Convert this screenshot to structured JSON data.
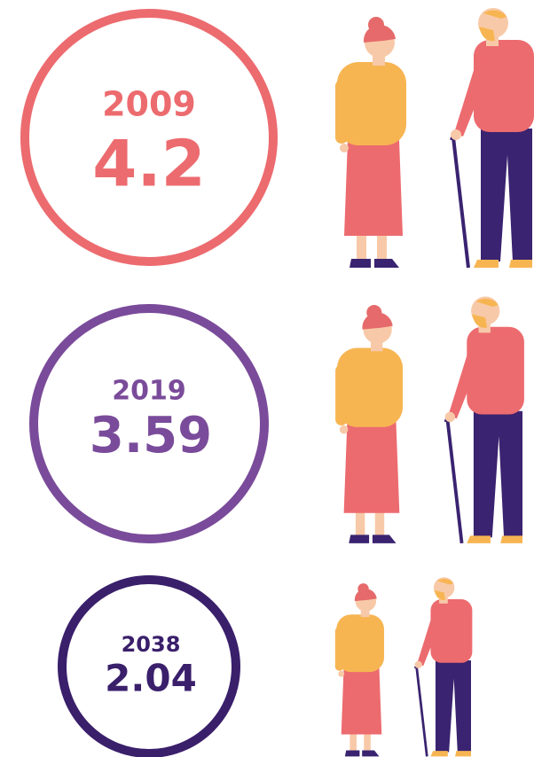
{
  "items": [
    {
      "year": "2009",
      "value": "4.2"
    },
    {
      "year": "2019",
      "value": "3.59"
    },
    {
      "year": "2038",
      "value": "2.04"
    }
  ]
}
